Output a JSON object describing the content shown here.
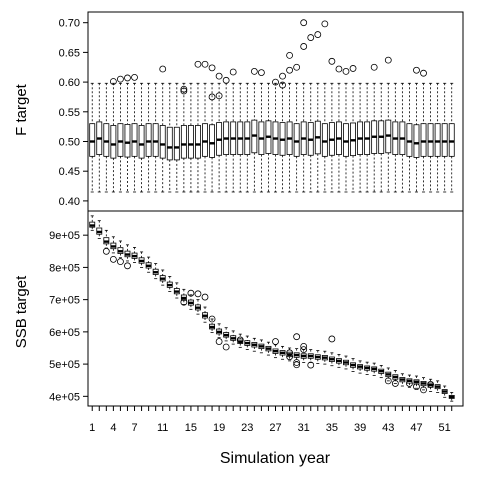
{
  "chart_data": {
    "type": "boxplot",
    "xlabel": "Simulation year",
    "x_tick_labels": [
      "1",
      "4",
      "7",
      "11",
      "15",
      "19",
      "23",
      "27",
      "31",
      "35",
      "39",
      "43",
      "47",
      "51"
    ],
    "n_years": 52,
    "panels": [
      {
        "ylabel": "F target",
        "ylim": [
          0.383,
          0.718
        ],
        "y_ticks": [
          0.4,
          0.45,
          0.5,
          0.55,
          0.6,
          0.65,
          0.7
        ],
        "y_tick_labels": [
          "0.40",
          "0.45",
          "0.50",
          "0.55",
          "0.60",
          "0.65",
          "0.70"
        ],
        "medians": [
          0.5,
          0.505,
          0.5,
          0.495,
          0.5,
          0.498,
          0.5,
          0.495,
          0.5,
          0.5,
          0.495,
          0.49,
          0.49,
          0.495,
          0.495,
          0.495,
          0.5,
          0.497,
          0.503,
          0.505,
          0.505,
          0.505,
          0.505,
          0.51,
          0.505,
          0.508,
          0.505,
          0.503,
          0.505,
          0.5,
          0.505,
          0.503,
          0.507,
          0.5,
          0.503,
          0.505,
          0.5,
          0.502,
          0.505,
          0.505,
          0.508,
          0.508,
          0.51,
          0.505,
          0.505,
          0.5,
          0.497,
          0.5,
          0.5,
          0.5,
          0.5,
          0.5
        ],
        "q1": 0.475,
        "q3": 0.53,
        "whisker_low": 0.415,
        "whisker_high": 0.598,
        "outliers": [
          [
            4,
            0.601
          ],
          [
            5,
            0.605
          ],
          [
            6,
            0.607
          ],
          [
            7,
            0.608
          ],
          [
            11,
            0.622
          ],
          [
            14,
            0.588
          ],
          [
            14,
            0.585
          ],
          [
            16,
            0.63
          ],
          [
            17,
            0.63
          ],
          [
            18,
            0.624
          ],
          [
            18,
            0.575
          ],
          [
            19,
            0.61
          ],
          [
            19,
            0.577
          ],
          [
            20,
            0.603
          ],
          [
            21,
            0.617
          ],
          [
            24,
            0.618
          ],
          [
            25,
            0.616
          ],
          [
            27,
            0.6
          ],
          [
            28,
            0.61
          ],
          [
            28,
            0.595
          ],
          [
            29,
            0.645
          ],
          [
            29,
            0.62
          ],
          [
            30,
            0.625
          ],
          [
            31,
            0.7
          ],
          [
            31,
            0.66
          ],
          [
            32,
            0.675
          ],
          [
            33,
            0.68
          ],
          [
            34,
            0.698
          ],
          [
            35,
            0.635
          ],
          [
            36,
            0.622
          ],
          [
            37,
            0.618
          ],
          [
            38,
            0.623
          ],
          [
            41,
            0.625
          ],
          [
            43,
            0.637
          ],
          [
            47,
            0.62
          ],
          [
            48,
            0.615
          ]
        ]
      },
      {
        "ylabel": "SSB target",
        "ylim": [
          370000,
          975000
        ],
        "y_ticks": [
          400000,
          500000,
          600000,
          700000,
          800000,
          900000
        ],
        "y_tick_labels": [
          "4e+05",
          "5e+05",
          "6e+05",
          "7e+05",
          "8e+05",
          "9e+05"
        ],
        "medians": [
          930000,
          910000,
          880000,
          865000,
          850000,
          840000,
          835000,
          820000,
          805000,
          785000,
          765000,
          745000,
          725000,
          705000,
          690000,
          675000,
          650000,
          615000,
          600000,
          590000,
          580000,
          570000,
          565000,
          560000,
          555000,
          548000,
          540000,
          535000,
          530000,
          528000,
          525000,
          525000,
          522000,
          520000,
          515000,
          510000,
          505000,
          497000,
          492000,
          488000,
          485000,
          478000,
          468000,
          460000,
          452000,
          448000,
          445000,
          440000,
          435000,
          430000,
          415000,
          398000
        ],
        "whisker_low": [
          915000,
          890000,
          860000,
          845000,
          830000,
          820000,
          815000,
          800000,
          785000,
          765000,
          745000,
          725000,
          705000,
          685000,
          670000,
          655000,
          630000,
          598000,
          582000,
          572000,
          562000,
          552000,
          545000,
          540000,
          535000,
          528000,
          520000,
          515000,
          510000,
          508000,
          505000,
          505000,
          502000,
          500000,
          495000,
          490000,
          485000,
          477000,
          472000,
          468000,
          465000,
          458000,
          448000,
          440000,
          432000,
          428000,
          425000,
          420000,
          415000,
          412000,
          397000,
          385000
        ],
        "whisker_high": [
          960000,
          945000,
          915000,
          895000,
          882000,
          870000,
          862000,
          848000,
          832000,
          812000,
          792000,
          772000,
          752000,
          732000,
          715000,
          700000,
          677000,
          640000,
          625000,
          613000,
          603000,
          593000,
          587000,
          580000,
          575000,
          568000,
          560000,
          555000,
          550000,
          548000,
          545000,
          545000,
          542000,
          540000,
          535000,
          530000,
          525000,
          517000,
          510000,
          506000,
          503000,
          496000,
          488000,
          480000,
          470000,
          466000,
          463000,
          458000,
          453000,
          448000,
          432000,
          412000
        ],
        "outliers": [
          [
            3,
            850000
          ],
          [
            4,
            825000
          ],
          [
            5,
            818000
          ],
          [
            6,
            805000
          ],
          [
            14,
            692000
          ],
          [
            15,
            720000
          ],
          [
            16,
            718000
          ],
          [
            17,
            708000
          ],
          [
            18,
            640000
          ],
          [
            19,
            570000
          ],
          [
            20,
            553000
          ],
          [
            22,
            575000
          ],
          [
            27,
            570000
          ],
          [
            29,
            535000
          ],
          [
            29,
            523000
          ],
          [
            30,
            585000
          ],
          [
            30,
            505000
          ],
          [
            30,
            498000
          ],
          [
            31,
            555000
          ],
          [
            31,
            545000
          ],
          [
            32,
            497000
          ],
          [
            35,
            578000
          ],
          [
            43,
            448000
          ],
          [
            44,
            440000
          ],
          [
            46,
            440000
          ],
          [
            47,
            430000
          ],
          [
            48,
            420000
          ],
          [
            49,
            437000
          ]
        ]
      }
    ]
  }
}
